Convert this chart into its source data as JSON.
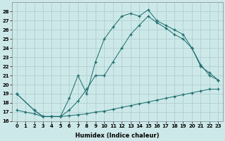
{
  "xlabel": "Humidex (Indice chaleur)",
  "background_color": "#cce8e8",
  "grid_color": "#aacccc",
  "line_color": "#1a6b6b",
  "xlim": [
    -0.5,
    23.5
  ],
  "ylim": [
    16,
    29
  ],
  "yticks": [
    16,
    17,
    18,
    19,
    20,
    21,
    22,
    23,
    24,
    25,
    26,
    27,
    28
  ],
  "xticks": [
    0,
    1,
    2,
    3,
    4,
    5,
    6,
    7,
    8,
    9,
    10,
    11,
    12,
    13,
    14,
    15,
    16,
    17,
    18,
    19,
    20,
    21,
    22,
    23
  ],
  "line1_x": [
    0,
    1,
    2,
    3,
    4,
    5,
    6,
    7,
    8,
    9,
    10,
    11,
    12,
    13,
    14,
    15,
    16,
    17,
    18,
    19,
    20,
    21,
    22,
    23
  ],
  "line1_y": [
    17.2,
    17.0,
    16.8,
    16.5,
    16.5,
    16.5,
    16.6,
    16.7,
    16.8,
    17.0,
    17.1,
    17.3,
    17.5,
    17.7,
    17.9,
    18.1,
    18.3,
    18.5,
    18.7,
    18.9,
    19.1,
    19.3,
    19.5,
    19.5
  ],
  "line2_x": [
    0,
    2,
    3,
    4,
    5,
    6,
    7,
    8,
    9,
    10,
    11,
    12,
    13,
    14,
    15,
    16,
    17,
    18,
    19,
    20,
    21,
    22,
    23
  ],
  "line2_y": [
    19.0,
    17.2,
    16.5,
    16.5,
    16.5,
    18.5,
    21.0,
    19.0,
    22.5,
    25.0,
    26.3,
    27.5,
    27.8,
    27.5,
    28.2,
    27.0,
    26.5,
    26.0,
    25.5,
    24.0,
    22.2,
    21.0,
    20.5
  ],
  "line3_x": [
    0,
    2,
    3,
    4,
    5,
    6,
    7,
    8,
    9,
    10,
    11,
    12,
    13,
    14,
    15,
    16,
    17,
    18,
    19,
    20,
    21,
    22,
    23
  ],
  "line3_y": [
    19.0,
    17.2,
    16.5,
    16.5,
    16.5,
    17.2,
    18.2,
    19.5,
    21.0,
    21.0,
    22.5,
    24.0,
    25.5,
    26.5,
    27.5,
    26.8,
    26.2,
    25.5,
    25.0,
    24.0,
    22.0,
    21.3,
    20.5
  ]
}
